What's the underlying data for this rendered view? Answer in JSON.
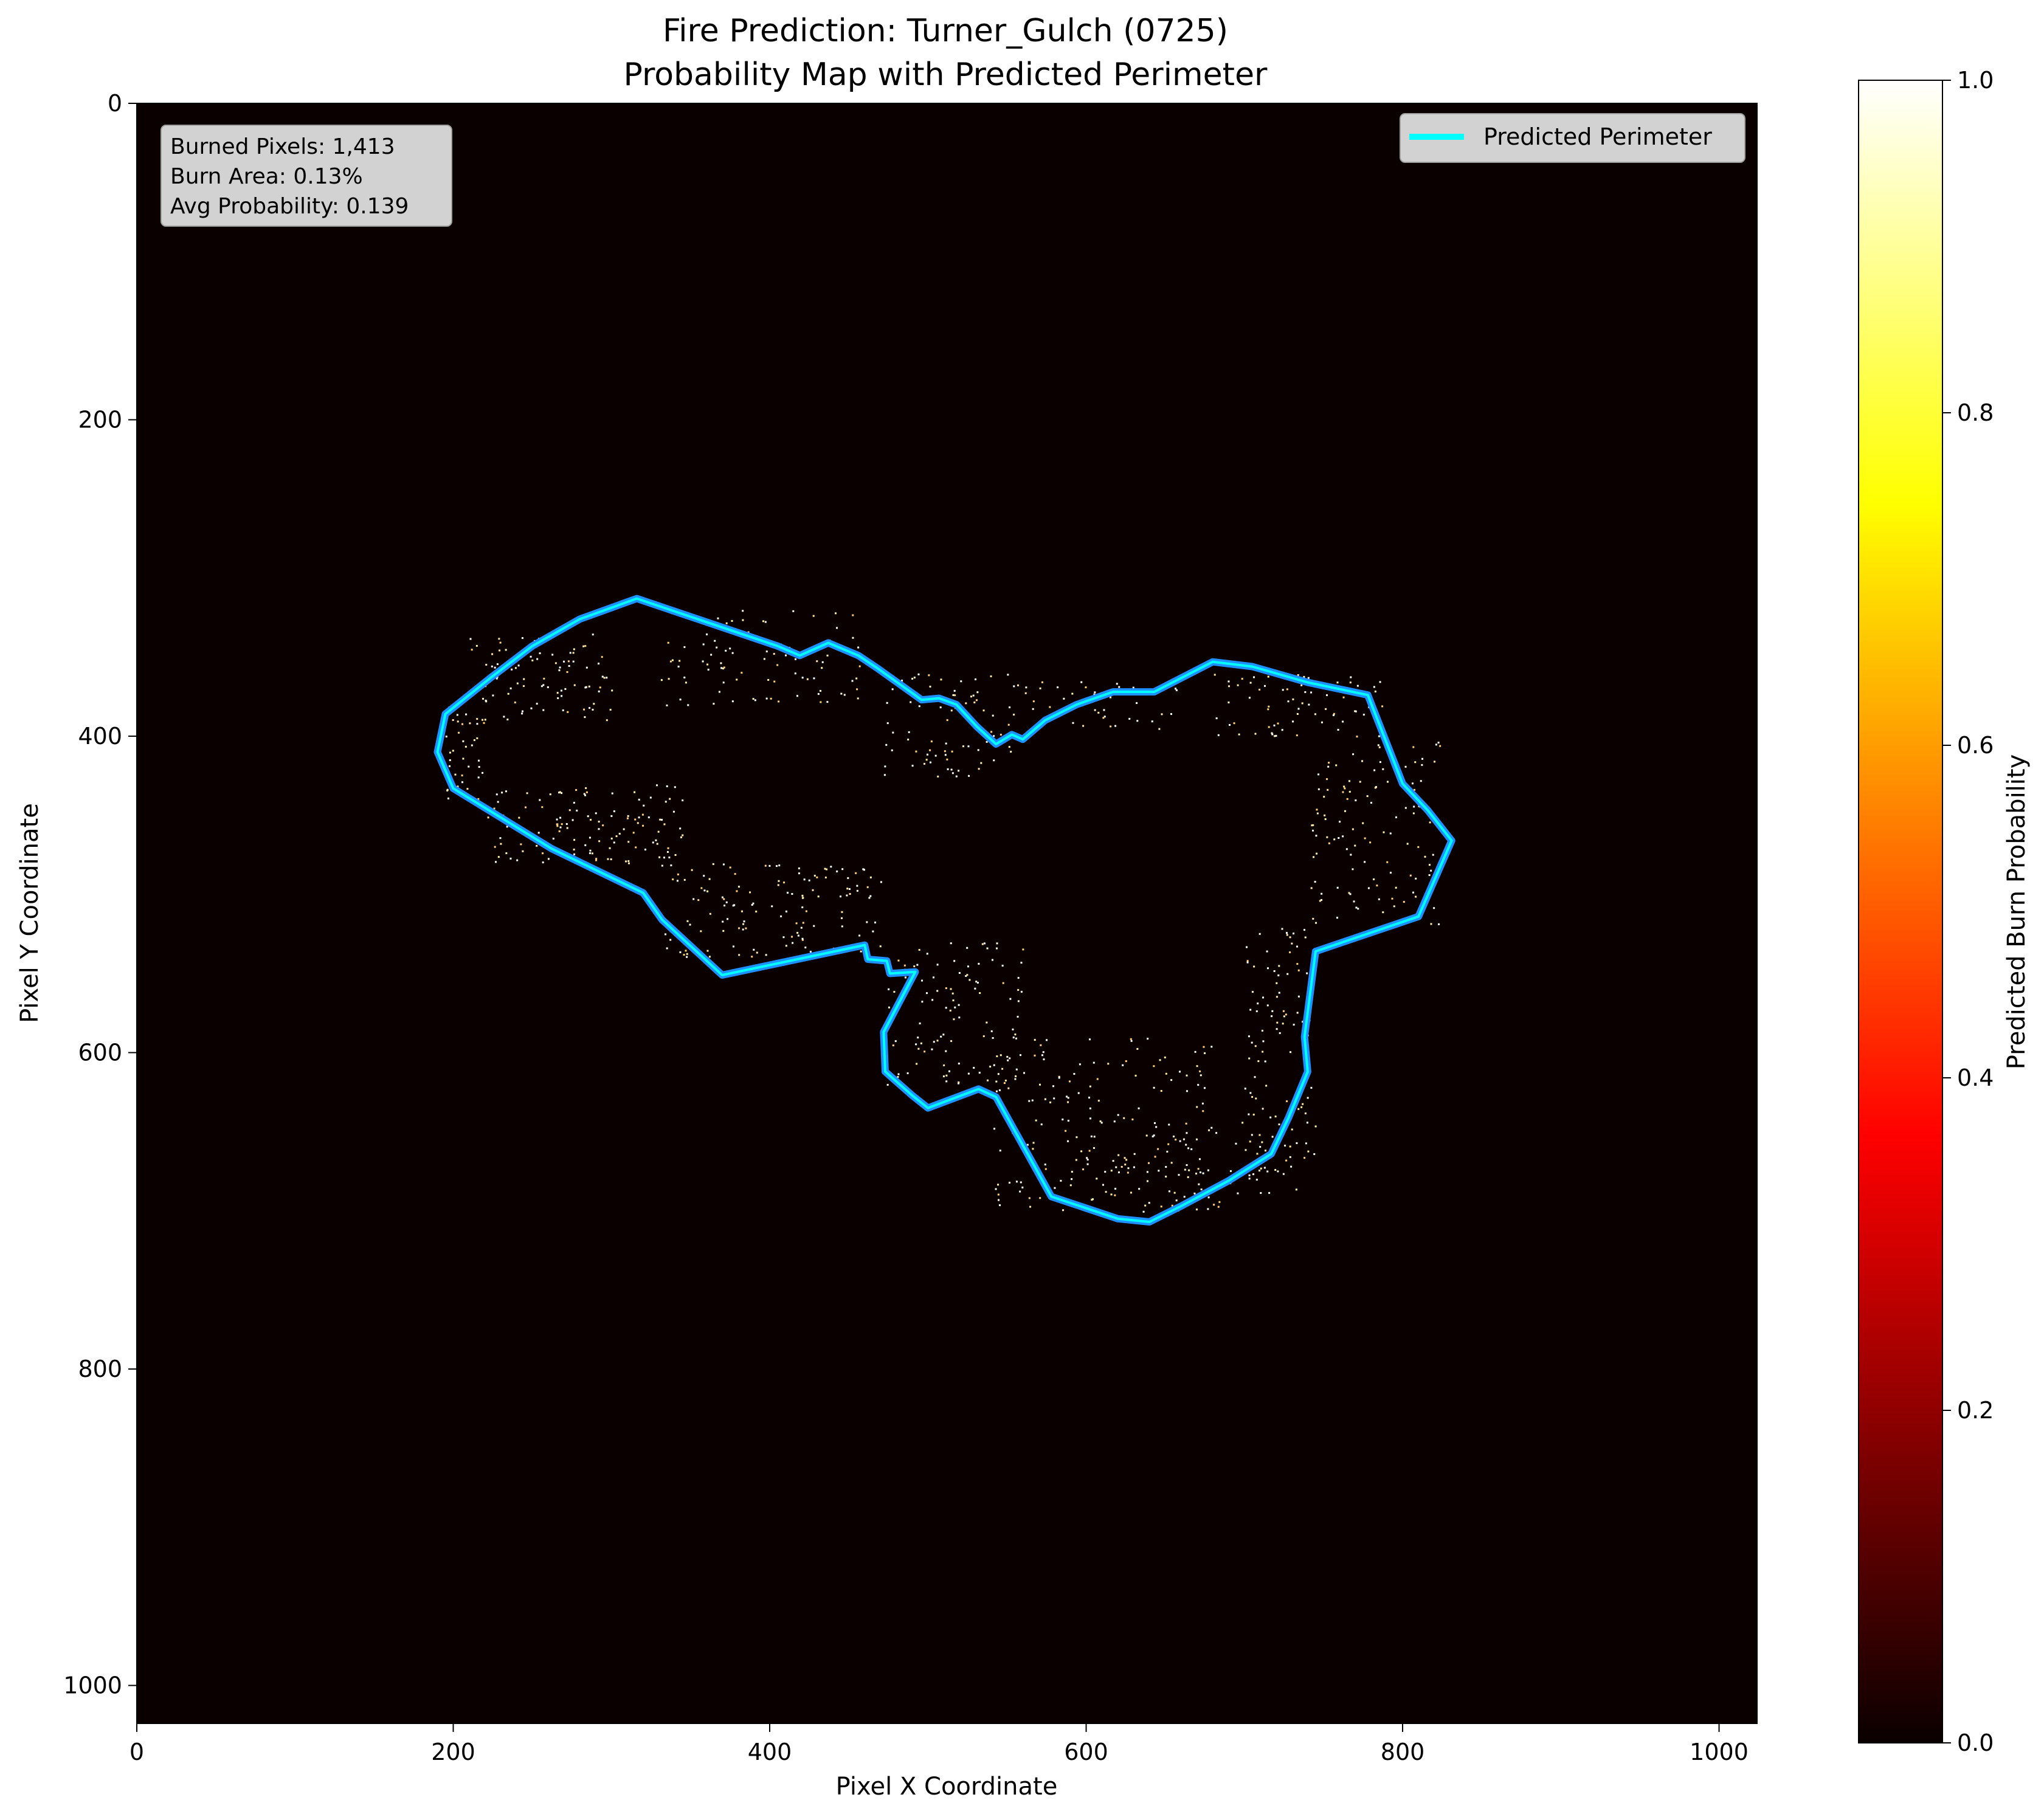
{
  "chart_data": {
    "type": "heatmap",
    "title_line1": "Fire Prediction: Turner_Gulch (0725)",
    "title_line2": "Probability Map with Predicted Perimeter",
    "xlabel": "Pixel X Coordinate",
    "ylabel": "Pixel Y Coordinate",
    "xlim": [
      0,
      1024
    ],
    "ylim": [
      1024,
      0
    ],
    "xticks": [
      0,
      200,
      400,
      600,
      800,
      1000
    ],
    "yticks": [
      0,
      200,
      400,
      600,
      800,
      1000
    ],
    "background_color": "#0a0000",
    "stats": {
      "burned_pixels": "Burned Pixels: 1,413",
      "burn_area": "Burn Area: 0.13%",
      "avg_probability": "Avg Probability: 0.139"
    },
    "legend": {
      "label": "Predicted Perimeter",
      "color": "#00ffff",
      "placement": "top-right"
    },
    "colorbar": {
      "label": "Predicted Burn Probability",
      "colormap": "hot",
      "range": [
        0,
        1
      ],
      "ticks": [
        "0.0",
        "0.2",
        "0.4",
        "0.6",
        "0.8",
        "1.0"
      ]
    },
    "perimeter_series": {
      "name": "Predicted Perimeter",
      "outer_color": "#1e90ff",
      "inner_color": "#00ffff",
      "points": [
        [
          316,
          313
        ],
        [
          280,
          326
        ],
        [
          250,
          343
        ],
        [
          225,
          362
        ],
        [
          195,
          386
        ],
        [
          190,
          410
        ],
        [
          200,
          433
        ],
        [
          262,
          471
        ],
        [
          320,
          499
        ],
        [
          332,
          516
        ],
        [
          370,
          551
        ],
        [
          460,
          532
        ],
        [
          462,
          541
        ],
        [
          474,
          542
        ],
        [
          476,
          550
        ],
        [
          492,
          549
        ],
        [
          472,
          587
        ],
        [
          473,
          612
        ],
        [
          490,
          627
        ],
        [
          500,
          635
        ],
        [
          532,
          623
        ],
        [
          543,
          628
        ],
        [
          578,
          691
        ],
        [
          620,
          705
        ],
        [
          640,
          707
        ],
        [
          660,
          697
        ],
        [
          690,
          681
        ],
        [
          717,
          664
        ],
        [
          728,
          641
        ],
        [
          740,
          612
        ],
        [
          738,
          590
        ],
        [
          745,
          536
        ],
        [
          810,
          514
        ],
        [
          831,
          466
        ],
        [
          816,
          447
        ],
        [
          800,
          430
        ],
        [
          778,
          374
        ],
        [
          740,
          366
        ],
        [
          705,
          356
        ],
        [
          680,
          353
        ],
        [
          643,
          372
        ],
        [
          617,
          372
        ],
        [
          594,
          380
        ],
        [
          574,
          390
        ],
        [
          560,
          402
        ],
        [
          553,
          399
        ],
        [
          543,
          405
        ],
        [
          531,
          394
        ],
        [
          518,
          380
        ],
        [
          507,
          376
        ],
        [
          496,
          377
        ],
        [
          468,
          357
        ],
        [
          456,
          349
        ],
        [
          437,
          341
        ],
        [
          419,
          349
        ],
        [
          405,
          343
        ]
      ]
    },
    "burn_point_clusters": [
      {
        "x": [
          210,
          300
        ],
        "y": [
          335,
          390
        ],
        "count": 90
      },
      {
        "x": [
          195,
          220
        ],
        "y": [
          380,
          440
        ],
        "count": 40
      },
      {
        "x": [
          220,
          345
        ],
        "y": [
          430,
          480
        ],
        "count": 130
      },
      {
        "x": [
          330,
          470
        ],
        "y": [
          480,
          540
        ],
        "count": 140
      },
      {
        "x": [
          330,
          460
        ],
        "y": [
          320,
          380
        ],
        "count": 90
      },
      {
        "x": [
          470,
          560
        ],
        "y": [
          360,
          425
        ],
        "count": 80
      },
      {
        "x": [
          470,
          560
        ],
        "y": [
          530,
          620
        ],
        "count": 110
      },
      {
        "x": [
          540,
          680
        ],
        "y": [
          590,
          700
        ],
        "count": 170
      },
      {
        "x": [
          560,
          660
        ],
        "y": [
          365,
          395
        ],
        "count": 40
      },
      {
        "x": [
          680,
          790
        ],
        "y": [
          360,
          400
        ],
        "count": 70
      },
      {
        "x": [
          700,
          745
        ],
        "y": [
          520,
          690
        ],
        "count": 110
      },
      {
        "x": [
          740,
          825
        ],
        "y": [
          400,
          520
        ],
        "count": 120
      },
      {
        "x": [
          600,
          720
        ],
        "y": [
          640,
          700
        ],
        "count": 60
      }
    ]
  }
}
